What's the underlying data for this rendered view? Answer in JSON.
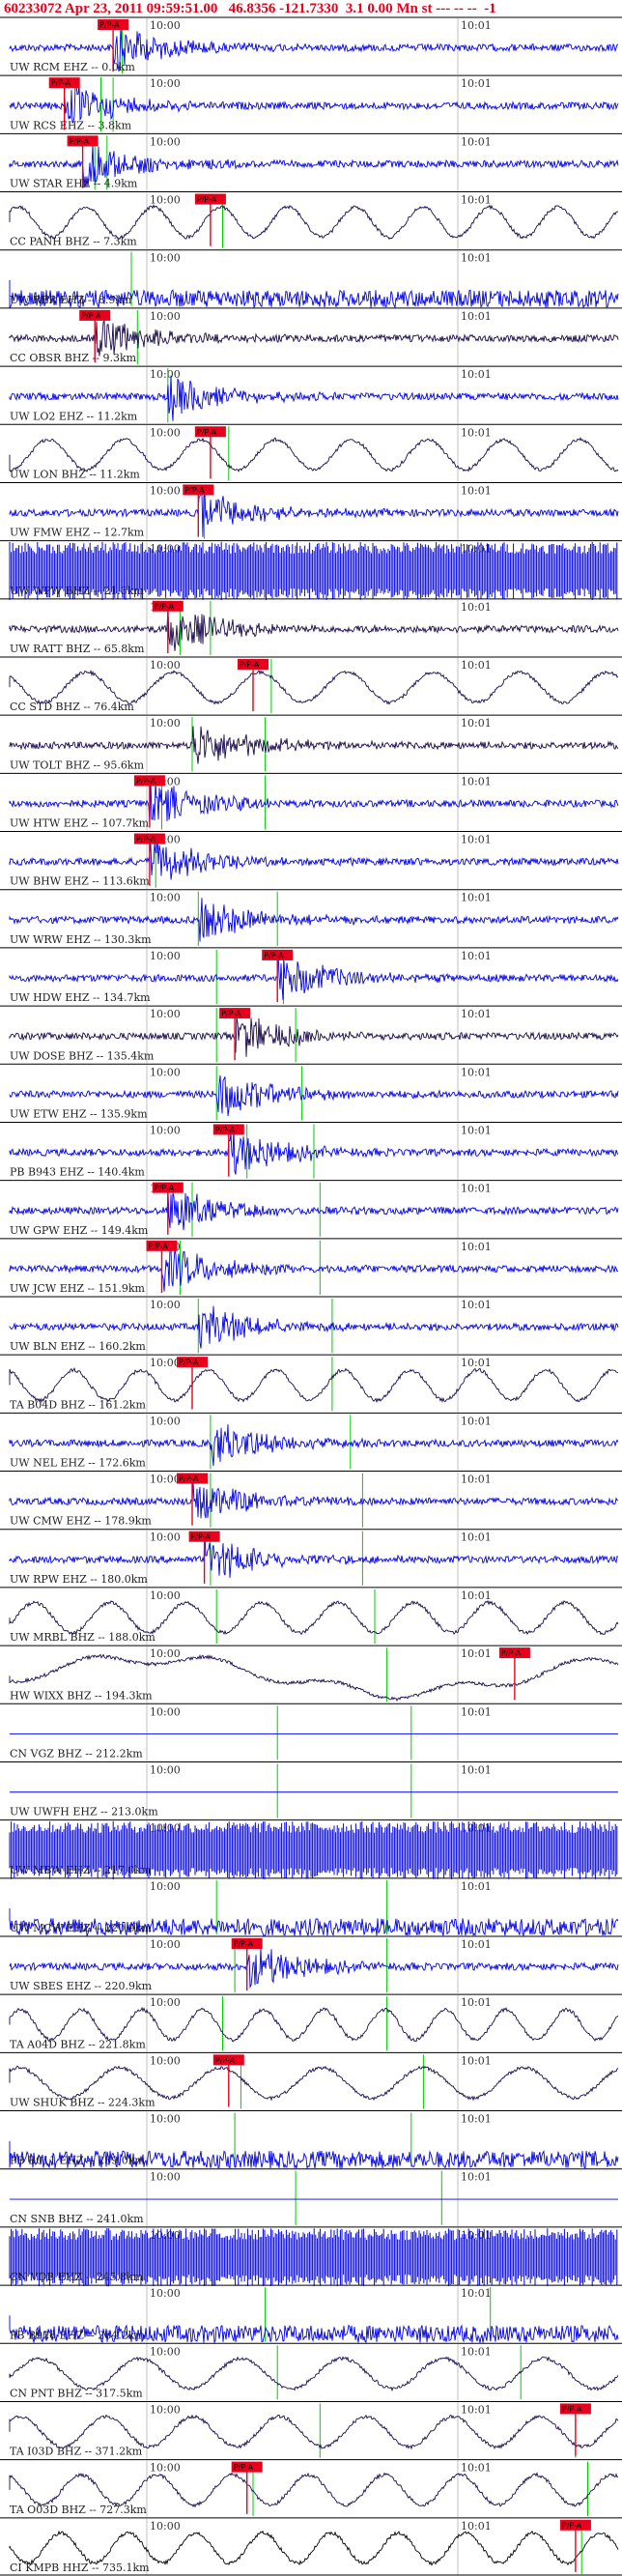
{
  "header": "60233072 Apr 23, 2011 09:59:51.00   46.8356 -121.7330  3.1 0.00 Mn st --- -- --  -1",
  "chart_data": {
    "type": "line",
    "title": "60233072 Apr 23, 2011 09:59:51.00   46.8356 -121.7330  3.1 0.00 Mn st --- -- --  -1",
    "tick_labels": [
      "10:00",
      "10:01"
    ],
    "pick_label": "P/P-A",
    "colors": {
      "blue": "#0000ee",
      "dark": "#1a0a4a",
      "black": "#000000",
      "pick": "#e8001c",
      "green": "#00cc00",
      "grid": "#9a9a9a"
    },
    "stations": [
      {
        "label": "UW RCM EHZ -- 0.0km",
        "color": "blue",
        "style": "event",
        "pick": 0.17,
        "arrivals": [
          0.185
        ]
      },
      {
        "label": "UW RCS EHZ -- 3.8km",
        "color": "blue",
        "style": "spikes",
        "pick": 0.09,
        "arrivals": [
          0.15,
          0.17
        ]
      },
      {
        "label": "UW STAR EHZ -- 4.9km",
        "color": "blue",
        "style": "event",
        "pick": 0.12,
        "arrivals": [
          0.14,
          0.16
        ]
      },
      {
        "label": "CC PANH BHZ -- 7.3km",
        "color": "dark",
        "style": "wave",
        "pick": 0.33,
        "arrivals": [
          0.35
        ]
      },
      {
        "label": "UW RER EHZ -- 8.9km",
        "color": "blue",
        "style": "noise",
        "pick": null,
        "arrivals": [
          0.2
        ]
      },
      {
        "label": "CC OBSR BHZ -- 9.3km",
        "color": "dark",
        "style": "event",
        "pick": 0.14,
        "arrivals": [
          0.21
        ]
      },
      {
        "label": "UW LO2 EHZ -- 11.2km",
        "color": "blue",
        "style": "event",
        "pick": null,
        "arrivals": [
          0.26
        ]
      },
      {
        "label": "UW LON BHZ -- 11.2km",
        "color": "dark",
        "style": "wave",
        "pick": 0.33,
        "arrivals": [
          0.36
        ]
      },
      {
        "label": "UW FMW EHZ -- 12.7km",
        "color": "blue",
        "style": "event",
        "pick": 0.31,
        "arrivals": [
          0.32
        ]
      },
      {
        "label": "UW WPW BHZ -- 21.3km",
        "color": "blue",
        "style": "barcode",
        "pick": null,
        "arrivals": []
      },
      {
        "label": "UW RATT BHZ -- 65.8km",
        "color": "dark",
        "style": "event",
        "pick": 0.26,
        "arrivals": [
          0.28,
          0.33
        ]
      },
      {
        "label": "CC STD BHZ -- 76.4km",
        "color": "dark",
        "style": "wave",
        "pick": 0.4,
        "arrivals": [
          0.43
        ]
      },
      {
        "label": "UW TOLT BHZ -- 95.6km",
        "color": "dark",
        "style": "event",
        "pick": null,
        "arrivals": [
          0.3,
          0.42
        ]
      },
      {
        "label": "UW HTW EHZ -- 107.7km",
        "color": "blue",
        "style": "event",
        "pick": 0.23,
        "arrivals": [
          0.25,
          0.42
        ]
      },
      {
        "label": "UW BHW EHZ -- 113.6km",
        "color": "blue",
        "style": "event",
        "pick": 0.23,
        "arrivals": [
          0.24
        ]
      },
      {
        "label": "UW WRW EHZ -- 130.3km",
        "color": "blue",
        "style": "event",
        "pick": null,
        "arrivals": [
          0.31,
          0.44
        ]
      },
      {
        "label": "UW HDW EHZ -- 134.7km",
        "color": "blue",
        "style": "event",
        "pick": 0.44,
        "arrivals": [
          0.34,
          0.45
        ]
      },
      {
        "label": "UW DOSE BHZ -- 135.4km",
        "color": "dark",
        "style": "event",
        "pick": 0.37,
        "arrivals": [
          0.34,
          0.47
        ]
      },
      {
        "label": "UW ETW EHZ -- 135.9km",
        "color": "blue",
        "style": "event",
        "pick": null,
        "arrivals": [
          0.34,
          0.48
        ]
      },
      {
        "label": "PB B943 EHZ -- 140.4km",
        "color": "blue",
        "style": "event",
        "pick": 0.36,
        "arrivals": [
          0.39,
          0.5
        ]
      },
      {
        "label": "UW GPW EHZ -- 149.4km",
        "color": "blue",
        "style": "event",
        "pick": 0.26,
        "arrivals": [
          0.3,
          0.51
        ]
      },
      {
        "label": "UW JCW EHZ -- 151.9km",
        "color": "blue",
        "style": "event",
        "pick": 0.25,
        "arrivals": [
          0.28,
          0.51
        ]
      },
      {
        "label": "UW BLN EHZ -- 160.2km",
        "color": "blue",
        "style": "event",
        "pick": null,
        "arrivals": [
          0.31,
          0.53
        ]
      },
      {
        "label": "TA B04D BHZ -- 161.2km",
        "color": "dark",
        "style": "wave",
        "pick": 0.3,
        "arrivals": [
          0.53
        ]
      },
      {
        "label": "UW NEL EHZ -- 172.6km",
        "color": "blue",
        "style": "event",
        "pick": null,
        "arrivals": [
          0.33,
          0.56
        ]
      },
      {
        "label": "UW CMW EHZ -- 178.9km",
        "color": "blue",
        "style": "event",
        "pick": 0.3,
        "arrivals": [
          0.33,
          0.58
        ]
      },
      {
        "label": "UW RPW EHZ -- 180.0km",
        "color": "blue",
        "style": "event",
        "pick": 0.32,
        "arrivals": [
          0.33,
          0.58
        ]
      },
      {
        "label": "UW MRBL BHZ -- 188.0km",
        "color": "dark",
        "style": "wave",
        "pick": null,
        "arrivals": [
          0.34,
          0.6
        ]
      },
      {
        "label": "HW WIXX BHZ -- 194.3km",
        "color": "dark",
        "style": "slow",
        "pick": 0.83,
        "arrivals": [
          0.62
        ]
      },
      {
        "label": "CN VGZ BHZ -- 212.2km",
        "color": "blue",
        "style": "flat",
        "pick": null,
        "arrivals": [
          0.44,
          0.66
        ]
      },
      {
        "label": "UW UWFH EHZ -- 213.0km",
        "color": "blue",
        "style": "flat",
        "pick": null,
        "arrivals": [
          0.44,
          0.66
        ]
      },
      {
        "label": "UW MBW EHZ -- 217.0km",
        "color": "blue",
        "style": "barcode",
        "pick": null,
        "arrivals": []
      },
      {
        "label": "UW MCW EHZ -- 220.9km",
        "color": "blue",
        "style": "noise",
        "pick": null,
        "arrivals": [
          0.34,
          0.62
        ]
      },
      {
        "label": "UW SBES EHZ -- 220.9km",
        "color": "blue",
        "style": "event",
        "pick": 0.39,
        "arrivals": [
          0.37,
          0.62
        ]
      },
      {
        "label": "TA A04D BHZ -- 221.8km",
        "color": "dark",
        "style": "wave",
        "pick": null,
        "arrivals": [
          0.35,
          0.62
        ]
      },
      {
        "label": "UW SHUK BHZ -- 224.3km",
        "color": "dark",
        "style": "wave",
        "pick": 0.36,
        "arrivals": [
          0.38,
          0.68
        ]
      },
      {
        "label": "PB B011 EHZ -- 239.0km",
        "color": "blue",
        "style": "noise",
        "pick": null,
        "arrivals": [
          0.37,
          0.66
        ]
      },
      {
        "label": "CN SNB BHZ -- 241.0km",
        "color": "blue",
        "style": "flat",
        "pick": null,
        "arrivals": [
          0.47,
          0.71
        ]
      },
      {
        "label": "CN VDB EHZ -- 245.8km",
        "color": "blue",
        "style": "barcode",
        "pick": null,
        "arrivals": []
      },
      {
        "label": "PB B926 EHZ -- 284.2km",
        "color": "blue",
        "style": "noise",
        "pick": null,
        "arrivals": [
          0.42,
          0.79
        ]
      },
      {
        "label": "CN PNT BHZ -- 317.5km",
        "color": "dark",
        "style": "wave",
        "pick": null,
        "arrivals": [
          0.44,
          0.84
        ]
      },
      {
        "label": "TA I03D BHZ -- 371.2km",
        "color": "dark",
        "style": "wave",
        "pick": 0.93,
        "arrivals": [
          0.51,
          0.93
        ]
      },
      {
        "label": "TA O03D BHZ -- 727.3km",
        "color": "dark",
        "style": "wave",
        "pick": 0.39,
        "arrivals": [
          0.4,
          0.95
        ]
      },
      {
        "label": "CI KMPB HHZ -- 735.1km",
        "color": "black",
        "style": "wave",
        "pick": 0.93,
        "arrivals": [
          0.94
        ]
      }
    ]
  }
}
